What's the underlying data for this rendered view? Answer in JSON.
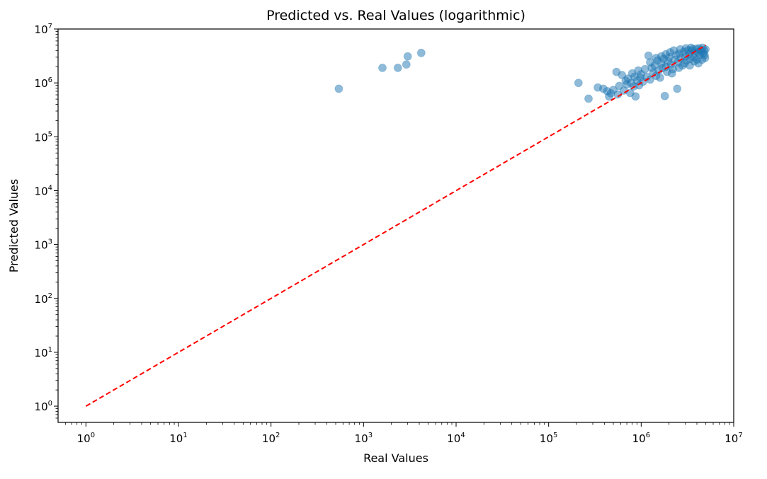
{
  "chart_data": {
    "type": "scatter",
    "title": "Predicted vs. Real Values (logarithmic)",
    "xlabel": "Real Values",
    "ylabel": "Predicted Values",
    "xscale": "log",
    "yscale": "log",
    "xlim": [
      0.5,
      10000000
    ],
    "ylim": [
      0.5,
      10000000
    ],
    "grid": false,
    "x_ticks": [
      {
        "base": "10",
        "exp": "0",
        "value": 1
      },
      {
        "base": "10",
        "exp": "1",
        "value": 10
      },
      {
        "base": "10",
        "exp": "2",
        "value": 100
      },
      {
        "base": "10",
        "exp": "3",
        "value": 1000
      },
      {
        "base": "10",
        "exp": "4",
        "value": 10000
      },
      {
        "base": "10",
        "exp": "5",
        "value": 100000
      },
      {
        "base": "10",
        "exp": "6",
        "value": 1000000
      },
      {
        "base": "10",
        "exp": "7",
        "value": 10000000
      }
    ],
    "y_ticks": [
      {
        "base": "10",
        "exp": "0",
        "value": 1
      },
      {
        "base": "10",
        "exp": "1",
        "value": 10
      },
      {
        "base": "10",
        "exp": "2",
        "value": 100
      },
      {
        "base": "10",
        "exp": "3",
        "value": 1000
      },
      {
        "base": "10",
        "exp": "4",
        "value": 10000
      },
      {
        "base": "10",
        "exp": "5",
        "value": 100000
      },
      {
        "base": "10",
        "exp": "6",
        "value": 1000000
      },
      {
        "base": "10",
        "exp": "7",
        "value": 10000000
      }
    ],
    "scatter_color": "#1f77b4",
    "scatter_alpha": 0.5,
    "series": [
      {
        "points": [
          [
            540,
            780000
          ],
          [
            1600,
            1900000
          ],
          [
            2350,
            1900000
          ],
          [
            2900,
            2200000
          ],
          [
            3000,
            3100000
          ],
          [
            4200,
            3600000
          ],
          [
            210000,
            1000000
          ],
          [
            270000,
            510000
          ],
          [
            340000,
            820000
          ],
          [
            390000,
            780000
          ],
          [
            430000,
            700000
          ],
          [
            450000,
            560000
          ],
          [
            470000,
            640000
          ],
          [
            500000,
            740000
          ],
          [
            540000,
            1600000
          ],
          [
            560000,
            610000
          ],
          [
            580000,
            880000
          ],
          [
            620000,
            1400000
          ],
          [
            650000,
            720000
          ],
          [
            680000,
            1100000
          ],
          [
            700000,
            940000
          ],
          [
            720000,
            1200000
          ],
          [
            760000,
            650000
          ],
          [
            780000,
            1000000
          ],
          [
            800000,
            1500000
          ],
          [
            830000,
            860000
          ],
          [
            850000,
            1300000
          ],
          [
            870000,
            560000
          ],
          [
            900000,
            1100000
          ],
          [
            930000,
            1700000
          ],
          [
            950000,
            900000
          ],
          [
            980000,
            1250000
          ],
          [
            1000000,
            1450000
          ],
          [
            1050000,
            1050000
          ],
          [
            1100000,
            1800000
          ],
          [
            1150000,
            1300000
          ],
          [
            1200000,
            3200000
          ],
          [
            1250000,
            1150000
          ],
          [
            1300000,
            1900000
          ],
          [
            1350000,
            1550000
          ],
          [
            1400000,
            2100000
          ],
          [
            1450000,
            1350000
          ],
          [
            1500000,
            2600000
          ],
          [
            1550000,
            1700000
          ],
          [
            1600000,
            1250000
          ],
          [
            1650000,
            2300000
          ],
          [
            1700000,
            1900000
          ],
          [
            1750000,
            2800000
          ],
          [
            1800000,
            570000
          ],
          [
            1850000,
            2000000
          ],
          [
            1900000,
            1600000
          ],
          [
            1950000,
            2500000
          ],
          [
            2000000,
            3000000
          ],
          [
            2100000,
            2200000
          ],
          [
            2200000,
            1800000
          ],
          [
            2300000,
            2700000
          ],
          [
            2400000,
            3300000
          ],
          [
            2450000,
            780000
          ],
          [
            2500000,
            2400000
          ],
          [
            2600000,
            3500000
          ],
          [
            2700000,
            2900000
          ],
          [
            2800000,
            2100000
          ],
          [
            2900000,
            3800000
          ],
          [
            3000000,
            3100000
          ],
          [
            3100000,
            2600000
          ],
          [
            3200000,
            4000000
          ],
          [
            3300000,
            3400000
          ],
          [
            3400000,
            2800000
          ],
          [
            3500000,
            3900000
          ],
          [
            3600000,
            4200000
          ],
          [
            3700000,
            3000000
          ],
          [
            3800000,
            3600000
          ],
          [
            3900000,
            4300000
          ],
          [
            4000000,
            2700000
          ],
          [
            4100000,
            3700000
          ],
          [
            4200000,
            4400000
          ],
          [
            4300000,
            3300000
          ],
          [
            4400000,
            4100000
          ],
          [
            4500000,
            3800000
          ],
          [
            4600000,
            4500000
          ],
          [
            4700000,
            3500000
          ],
          [
            4800000,
            4000000
          ],
          [
            4900000,
            2900000
          ],
          [
            4950000,
            4200000
          ],
          [
            1250000,
            2400000
          ],
          [
            1450000,
            2900000
          ],
          [
            1650000,
            3100000
          ],
          [
            1850000,
            3400000
          ],
          [
            2050000,
            3700000
          ],
          [
            2250000,
            4000000
          ],
          [
            2650000,
            4200000
          ],
          [
            3050000,
            4400000
          ],
          [
            3450000,
            4500000
          ],
          [
            2150000,
            1500000
          ],
          [
            2550000,
            1900000
          ],
          [
            2950000,
            2300000
          ],
          [
            3350000,
            2100000
          ],
          [
            3750000,
            2500000
          ],
          [
            4150000,
            2300000
          ],
          [
            4550000,
            2700000
          ],
          [
            4850000,
            3300000
          ]
        ]
      }
    ],
    "reference_line": {
      "x": [
        1,
        5000000
      ],
      "y": [
        1,
        5000000
      ],
      "color": "#ff0000",
      "style": "dashed"
    }
  }
}
